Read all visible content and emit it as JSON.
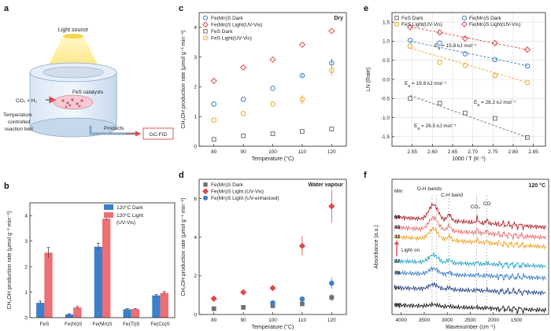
{
  "colors": {
    "blue": "#3d7fc9",
    "red": "#e0484a",
    "orange": "#f1a62c",
    "gray": "#707070",
    "dark_blue": "#2b4a8a",
    "pink": "#ee6f74",
    "teal": "#2fa7c7",
    "dark_red": "#b2262f"
  },
  "chart_data": [
    {
      "id": "a",
      "type": "diagram",
      "panel_label": "a",
      "texts": {
        "light_source": "Light source",
        "reactant": "CO₂ + H₂",
        "catalyst": "FeS catalysts",
        "bed_line1": "Temperature",
        "bed_line2": "controlled",
        "bed_line3": "reaction bed",
        "products": "Products",
        "gc": "GC-FID"
      }
    },
    {
      "id": "b",
      "type": "bar",
      "panel_label": "b",
      "categories": [
        "FeS",
        "Fe(Ni)S",
        "Fe(Mn)S",
        "Fe(Ti)S",
        "Fe(Co)S"
      ],
      "series": [
        {
          "name": "120°C Dark",
          "values": [
            0.58,
            0.13,
            2.78,
            0.33,
            0.87
          ],
          "errors": [
            0.07,
            0.02,
            0.14,
            0.02,
            0.04
          ],
          "color": "#3d7fc9"
        },
        {
          "name": "120°C Light",
          "sub": "(UV-Vis)",
          "values": [
            2.55,
            0.4,
            3.88,
            0.34,
            0.97
          ],
          "errors": [
            0.2,
            0.04,
            0.07,
            0.02,
            0.05
          ],
          "color": "#ee6f74"
        }
      ],
      "ylabel": "CH₃OH production rate (μmol g⁻¹ min⁻¹)",
      "ylim": [
        0,
        4.5
      ],
      "yticks": [
        0,
        1,
        2,
        3,
        4
      ],
      "legend": "top-right"
    },
    {
      "id": "c",
      "type": "scatter",
      "panel_label": "c",
      "annotation": "Dry",
      "x": [
        80,
        90,
        100,
        110,
        120
      ],
      "series": [
        {
          "name": "Fe(Mn)S Dark",
          "values": [
            1.42,
            1.58,
            1.95,
            2.38,
            2.8
          ],
          "errors": [
            0,
            0,
            0,
            0.05,
            0.15
          ],
          "marker": "circle",
          "color": "#3d7fc9"
        },
        {
          "name": "Fe(Mn)S Light(UV-Vis)",
          "values": [
            2.2,
            2.65,
            2.92,
            3.42,
            3.88
          ],
          "errors": [
            0,
            0,
            0,
            0,
            0
          ],
          "marker": "diamond",
          "color": "#e0484a"
        },
        {
          "name": "FeS Dark",
          "values": [
            0.23,
            0.35,
            0.42,
            0.5,
            0.58
          ],
          "errors": [
            0,
            0,
            0,
            0,
            0
          ],
          "marker": "square",
          "color": "#707070"
        },
        {
          "name": "FeS Light(UV-Vis)",
          "values": [
            0.88,
            1.1,
            1.42,
            1.58,
            2.55
          ],
          "errors": [
            0,
            0,
            0,
            0.15,
            0.2
          ],
          "marker": "circle",
          "color": "#f1a62c"
        }
      ],
      "xlabel": "Temperature (°C)",
      "ylabel": "CH₃OH production rate (μmol g⁻¹ min⁻¹)",
      "xlim": [
        75,
        125
      ],
      "ylim": [
        0,
        4.5
      ],
      "xticks": [
        80,
        90,
        100,
        110,
        120
      ],
      "yticks": [
        0,
        1,
        2,
        3,
        4
      ],
      "legend": "top-left"
    },
    {
      "id": "d",
      "type": "scatter",
      "panel_label": "d",
      "annotation": "Water vapour",
      "x": [
        80,
        90,
        100,
        110,
        120
      ],
      "series": [
        {
          "name": "Fe(Mn)S Dark",
          "values": [
            0.3,
            0.37,
            0.45,
            0.55,
            0.88
          ],
          "errors": [
            0,
            0,
            0.1,
            0.1,
            0.2
          ],
          "marker": "square",
          "color": "#707070"
        },
        {
          "name": "Fe(Mn)S Light (UV-Vis)",
          "values": [
            0.82,
            1.15,
            1.37,
            3.55,
            5.6
          ],
          "errors": [
            0,
            0,
            0,
            0.5,
            0.85
          ],
          "marker": "diamond",
          "color": "#e0484a"
        },
        {
          "name": "Fe(Mn)S Light (UV-enhanced)",
          "values": [
            null,
            null,
            0.6,
            0.8,
            1.62
          ],
          "errors": [
            0,
            0,
            0.1,
            0.08,
            0.3
          ],
          "marker": "circle",
          "color": "#3d7fc9"
        }
      ],
      "xlabel": "Temperature (°C)",
      "ylabel": "CH₃OH production rate (μmol g⁻¹ min⁻¹)",
      "xlim": [
        75,
        125
      ],
      "ylim": [
        0,
        7
      ],
      "xticks": [
        80,
        90,
        100,
        110,
        120
      ],
      "yticks": [
        0,
        2,
        4,
        6
      ],
      "legend": "top-left"
    },
    {
      "id": "e",
      "type": "scatter",
      "panel_label": "e",
      "x": [
        2.545,
        2.618,
        2.681,
        2.755,
        2.835
      ],
      "series": [
        {
          "name": "FeS Dark",
          "values": [
            -0.5,
            -0.62,
            -0.88,
            -1.02,
            -1.52
          ],
          "marker": "square",
          "color": "#707070",
          "fit": [
            -0.42,
            -1.52
          ]
        },
        {
          "name": "Fe(Mn)S Dark",
          "values": [
            1.02,
            0.95,
            0.67,
            0.52,
            0.35
          ],
          "marker": "circle",
          "color": "#3d7fc9",
          "fit": [
            1.0,
            0.36
          ]
        },
        {
          "name": "FeS Light(UV-Vis)",
          "values": [
            0.87,
            0.45,
            0.37,
            0.1,
            -0.08
          ],
          "marker": "circle",
          "color": "#f1a62c",
          "fit": [
            0.82,
            -0.08
          ]
        },
        {
          "name": "Fe(Mn)S Light(UV-Vis)",
          "values": [
            1.37,
            1.23,
            1.07,
            0.95,
            0.78
          ],
          "marker": "diamond",
          "color": "#e0484a",
          "fit": [
            1.38,
            0.78
          ]
        }
      ],
      "annotations": [
        {
          "label": "E",
          "sub": "a",
          "value": " = 15.8 kJ mol⁻¹",
          "color": "#e0484a"
        },
        {
          "label": "E",
          "sub": "a",
          "value": " = 19.8 kJ mol⁻¹",
          "color": "#3d7fc9"
        },
        {
          "label": "E",
          "sub": "a",
          "value": " = 28.2 kJ mol⁻¹",
          "color": "#f1a62c"
        },
        {
          "label": "E",
          "sub": "a",
          "value": " = 26.5 kJ mol⁻¹",
          "color": "#555555"
        }
      ],
      "xlabel": "1000 / T (K⁻¹)",
      "ylabel": "LN (Rate)",
      "xlim": [
        2.5,
        2.88
      ],
      "ylim": [
        -1.75,
        1.75
      ],
      "xticks": [
        2.55,
        2.6,
        2.65,
        2.7,
        2.75,
        2.8,
        2.85
      ],
      "yticks": [
        -1.5,
        -1.0,
        -0.5,
        0.0,
        0.5,
        1.0,
        1.5
      ],
      "grid": true,
      "legend": "top"
    },
    {
      "id": "f",
      "type": "line",
      "panel_label": "f",
      "annotation": "120 °C",
      "xlabel": "Wavenumber (cm⁻¹)",
      "ylabel": "Absorbance (a.u.)",
      "xlim": [
        4200,
        800
      ],
      "xticks": [
        4000,
        3500,
        3000,
        2500,
        2000,
        1500
      ],
      "header": "Min",
      "light_on": "Light on",
      "band_labels": [
        "O-H bands",
        "C-H band",
        "CO₂",
        "CO"
      ],
      "series": [
        {
          "name": "64",
          "color": "#b2262f"
        },
        {
          "name": "48",
          "color": "#ee6f74"
        },
        {
          "name": "33",
          "color": "#f1a62c"
        },
        {
          "name": "32",
          "color": "#2fa7c7"
        },
        {
          "name": "16",
          "color": "#3d7fc9"
        },
        {
          "name": "01",
          "color": "#2b4a8a"
        },
        {
          "name": "BG",
          "color": "#222222"
        }
      ]
    }
  ]
}
